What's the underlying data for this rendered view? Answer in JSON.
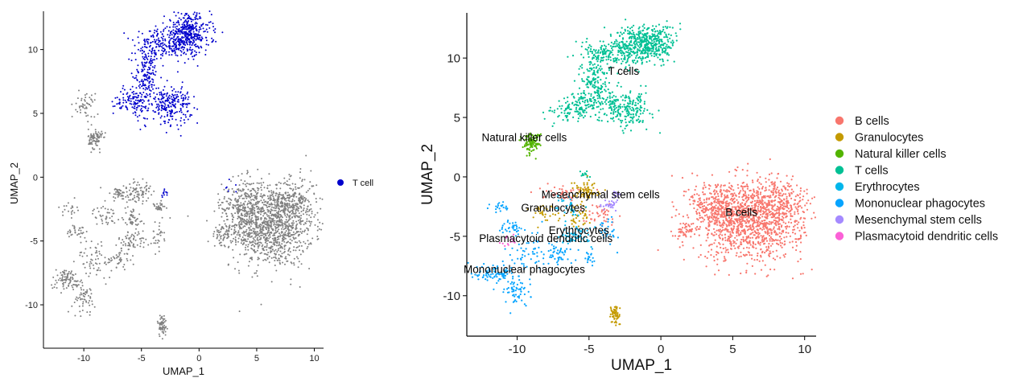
{
  "chart_data": [
    {
      "type": "scatter",
      "title": "",
      "xlabel": "UMAP_1",
      "ylabel": "UMAP_2",
      "xlim": [
        -13.5,
        10.8
      ],
      "ylim": [
        -13.4,
        13.0
      ],
      "x_ticks": [
        -10,
        -5,
        0,
        5,
        10
      ],
      "y_ticks": [
        -10,
        -5,
        0,
        5,
        10
      ],
      "x_tick_labels": [
        "-10",
        "-5",
        "0",
        "5",
        "10"
      ],
      "y_tick_labels": [
        "-10",
        "-5",
        "0",
        "5",
        "10"
      ],
      "grid": false,
      "legend_position": "right",
      "background_color": "#808080",
      "series": [
        {
          "name": "T cell",
          "color": "#0000cc",
          "regions": [
            {
              "cx": -1.0,
              "cy": 11.2,
              "sx": 1.0,
              "sy": 0.8,
              "n": 420
            },
            {
              "cx": -3.5,
              "cy": 10.3,
              "sx": 1.0,
              "sy": 0.6,
              "n": 160
            },
            {
              "cx": -4.6,
              "cy": 8.0,
              "sx": 0.5,
              "sy": 1.0,
              "n": 150
            },
            {
              "cx": -2.5,
              "cy": 5.7,
              "sx": 0.9,
              "sy": 0.7,
              "n": 230
            },
            {
              "cx": -5.5,
              "cy": 6.0,
              "sx": 0.6,
              "sy": 0.7,
              "n": 100
            },
            {
              "cx": -6.8,
              "cy": 5.8,
              "sx": 0.5,
              "sy": 0.3,
              "n": 20
            },
            {
              "cx": -3.0,
              "cy": -1.3,
              "sx": 0.15,
              "sy": 0.15,
              "n": 12
            },
            {
              "cx": 2.6,
              "cy": -0.8,
              "sx": 0.3,
              "sy": 0.3,
              "n": 6
            }
          ]
        }
      ]
    },
    {
      "type": "scatter",
      "title": "",
      "xlabel": "UMAP_1",
      "ylabel": "UMAP_2",
      "xlim": [
        -13.5,
        10.8
      ],
      "ylim": [
        -13.4,
        13.8
      ],
      "x_ticks": [
        -10,
        -5,
        0,
        5,
        10
      ],
      "y_ticks": [
        -10,
        -5,
        0,
        5,
        10
      ],
      "x_tick_labels": [
        "-10",
        "-5",
        "0",
        "5",
        "10"
      ],
      "y_tick_labels": [
        "-10",
        "-5",
        "0",
        "5",
        "10"
      ],
      "grid": false,
      "legend_position": "right",
      "series": [
        {
          "name": "B cells",
          "color": "#F8766D",
          "label_pos": [
            5.6,
            -3.3
          ],
          "regions": [
            {
              "cx": 6.3,
              "cy": -3.8,
              "sx": 1.8,
              "sy": 1.6,
              "n": 1100
            },
            {
              "cx": 4.0,
              "cy": -2.5,
              "sx": 1.0,
              "sy": 1.2,
              "n": 300
            },
            {
              "cx": 8.2,
              "cy": -2.0,
              "sx": 1.0,
              "sy": 1.0,
              "n": 200
            },
            {
              "cx": 1.6,
              "cy": -4.5,
              "sx": 0.4,
              "sy": 0.4,
              "n": 40
            },
            {
              "cx": -6.8,
              "cy": -1.3,
              "sx": 0.8,
              "sy": 0.3,
              "n": 50
            },
            {
              "cx": -4.3,
              "cy": -3.2,
              "sx": 0.6,
              "sy": 0.4,
              "n": 40
            }
          ]
        },
        {
          "name": "Granulocytes",
          "color": "#C49A00",
          "label_pos": [
            -7.5,
            -2.9
          ],
          "regions": [
            {
              "cx": -5.2,
              "cy": -1.1,
              "sx": 0.5,
              "sy": 0.4,
              "n": 70
            },
            {
              "cx": -5.8,
              "cy": -3.2,
              "sx": 0.4,
              "sy": 0.5,
              "n": 40
            },
            {
              "cx": -8.2,
              "cy": -3.0,
              "sx": 0.5,
              "sy": 0.4,
              "n": 30
            },
            {
              "cx": -3.2,
              "cy": -11.6,
              "sx": 0.2,
              "sy": 0.45,
              "n": 60
            }
          ]
        },
        {
          "name": "Natural killer cells",
          "color": "#53B400",
          "label_pos": [
            -9.5,
            3.0
          ],
          "regions": [
            {
              "cx": -9.0,
              "cy": 2.9,
              "sx": 0.3,
              "sy": 0.4,
              "n": 110
            }
          ]
        },
        {
          "name": "T cells",
          "color": "#00C094",
          "label_pos": [
            -2.6,
            8.6
          ],
          "regions": [
            {
              "cx": -1.0,
              "cy": 11.2,
              "sx": 1.0,
              "sy": 0.8,
              "n": 450
            },
            {
              "cx": -3.5,
              "cy": 10.3,
              "sx": 1.0,
              "sy": 0.6,
              "n": 180
            },
            {
              "cx": -4.6,
              "cy": 8.0,
              "sx": 0.5,
              "sy": 1.0,
              "n": 150
            },
            {
              "cx": -2.5,
              "cy": 5.7,
              "sx": 0.9,
              "sy": 0.7,
              "n": 240
            },
            {
              "cx": -5.5,
              "cy": 6.0,
              "sx": 0.6,
              "sy": 0.7,
              "n": 110
            },
            {
              "cx": -7.0,
              "cy": 5.5,
              "sx": 0.6,
              "sy": 0.4,
              "n": 40
            },
            {
              "cx": -5.3,
              "cy": 0.2,
              "sx": 0.2,
              "sy": 0.2,
              "n": 12
            }
          ]
        },
        {
          "name": "Erythrocytes",
          "color": "#00B6EB",
          "label_pos": [
            -5.7,
            -4.8
          ],
          "regions": [
            {
              "cx": -5.8,
              "cy": -5.0,
              "sx": 0.6,
              "sy": 0.4,
              "n": 60
            },
            {
              "cx": -6.5,
              "cy": -2.6,
              "sx": 0.4,
              "sy": 0.5,
              "n": 30
            }
          ]
        },
        {
          "name": "Mononuclear phagocytes",
          "color": "#06A4FF",
          "label_pos": [
            -9.5,
            -8.1
          ],
          "regions": [
            {
              "cx": -11.5,
              "cy": -8.0,
              "sx": 0.7,
              "sy": 0.4,
              "n": 90
            },
            {
              "cx": -10.0,
              "cy": -9.5,
              "sx": 0.5,
              "sy": 0.6,
              "n": 60
            },
            {
              "cx": -9.0,
              "cy": -6.3,
              "sx": 0.8,
              "sy": 0.8,
              "n": 60
            },
            {
              "cx": -7.0,
              "cy": -6.5,
              "sx": 0.5,
              "sy": 0.4,
              "n": 40
            },
            {
              "cx": -10.5,
              "cy": -4.2,
              "sx": 0.5,
              "sy": 0.3,
              "n": 30
            },
            {
              "cx": -11.2,
              "cy": -2.5,
              "sx": 0.3,
              "sy": 0.3,
              "n": 20
            },
            {
              "cx": -3.6,
              "cy": -4.5,
              "sx": 0.3,
              "sy": 0.6,
              "n": 30
            },
            {
              "cx": -5.0,
              "cy": -6.8,
              "sx": 0.2,
              "sy": 0.3,
              "n": 20
            }
          ]
        },
        {
          "name": "Mesenchymal stem cells",
          "color": "#A58AFF",
          "label_pos": [
            -4.2,
            -1.8
          ],
          "regions": [
            {
              "cx": -3.5,
              "cy": -2.4,
              "sx": 0.3,
              "sy": 0.2,
              "n": 30
            },
            {
              "cx": -3.1,
              "cy": -1.4,
              "sx": 0.15,
              "sy": 0.2,
              "n": 12
            }
          ]
        },
        {
          "name": "Plasmacytoid dendritic cells",
          "color": "#FB61D7",
          "label_pos": [
            -8.0,
            -5.5
          ],
          "regions": [
            {
              "cx": -10.5,
              "cy": -5.4,
              "sx": 0.3,
              "sy": 0.2,
              "n": 15
            }
          ]
        }
      ]
    }
  ]
}
